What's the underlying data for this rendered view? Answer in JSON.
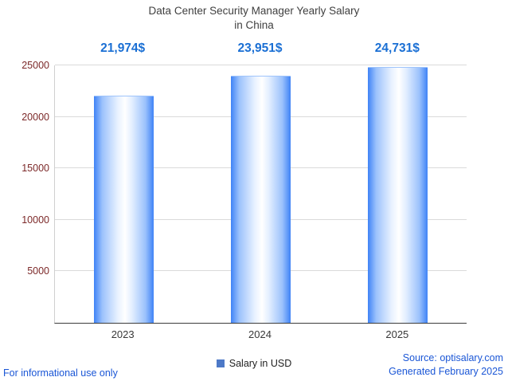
{
  "title": {
    "line1": "Data Center Security Manager Yearly Salary",
    "line2": "in China"
  },
  "chart_data": {
    "type": "bar",
    "title": "Data Center Security Manager Yearly Salary in China",
    "categories": [
      "2023",
      "2024",
      "2025"
    ],
    "values": [
      21974,
      23951,
      24731
    ],
    "value_labels": [
      "21,974$",
      "23,951$",
      "24,731$"
    ],
    "xlabel": "",
    "ylabel": "",
    "ylim": [
      0,
      25000
    ],
    "yticks": [
      5000,
      10000,
      15000,
      20000,
      25000
    ],
    "grid": true,
    "legend": {
      "label": "Salary in USD",
      "position": "bottom",
      "marker_color": "#4d79c7"
    },
    "bar_edge_color": "#3f83f6",
    "bar_center_color": "#ffffff"
  },
  "footer": {
    "left": "For informational use only",
    "source": "Source: optisalary.com",
    "generated": "Generated February 2025"
  },
  "colors": {
    "value_label": "#1a6fd4",
    "footer_text": "#1a56d6",
    "ytick_text": "#7c2929",
    "xtick_text": "#383838",
    "title_text": "#3f3f3f"
  }
}
